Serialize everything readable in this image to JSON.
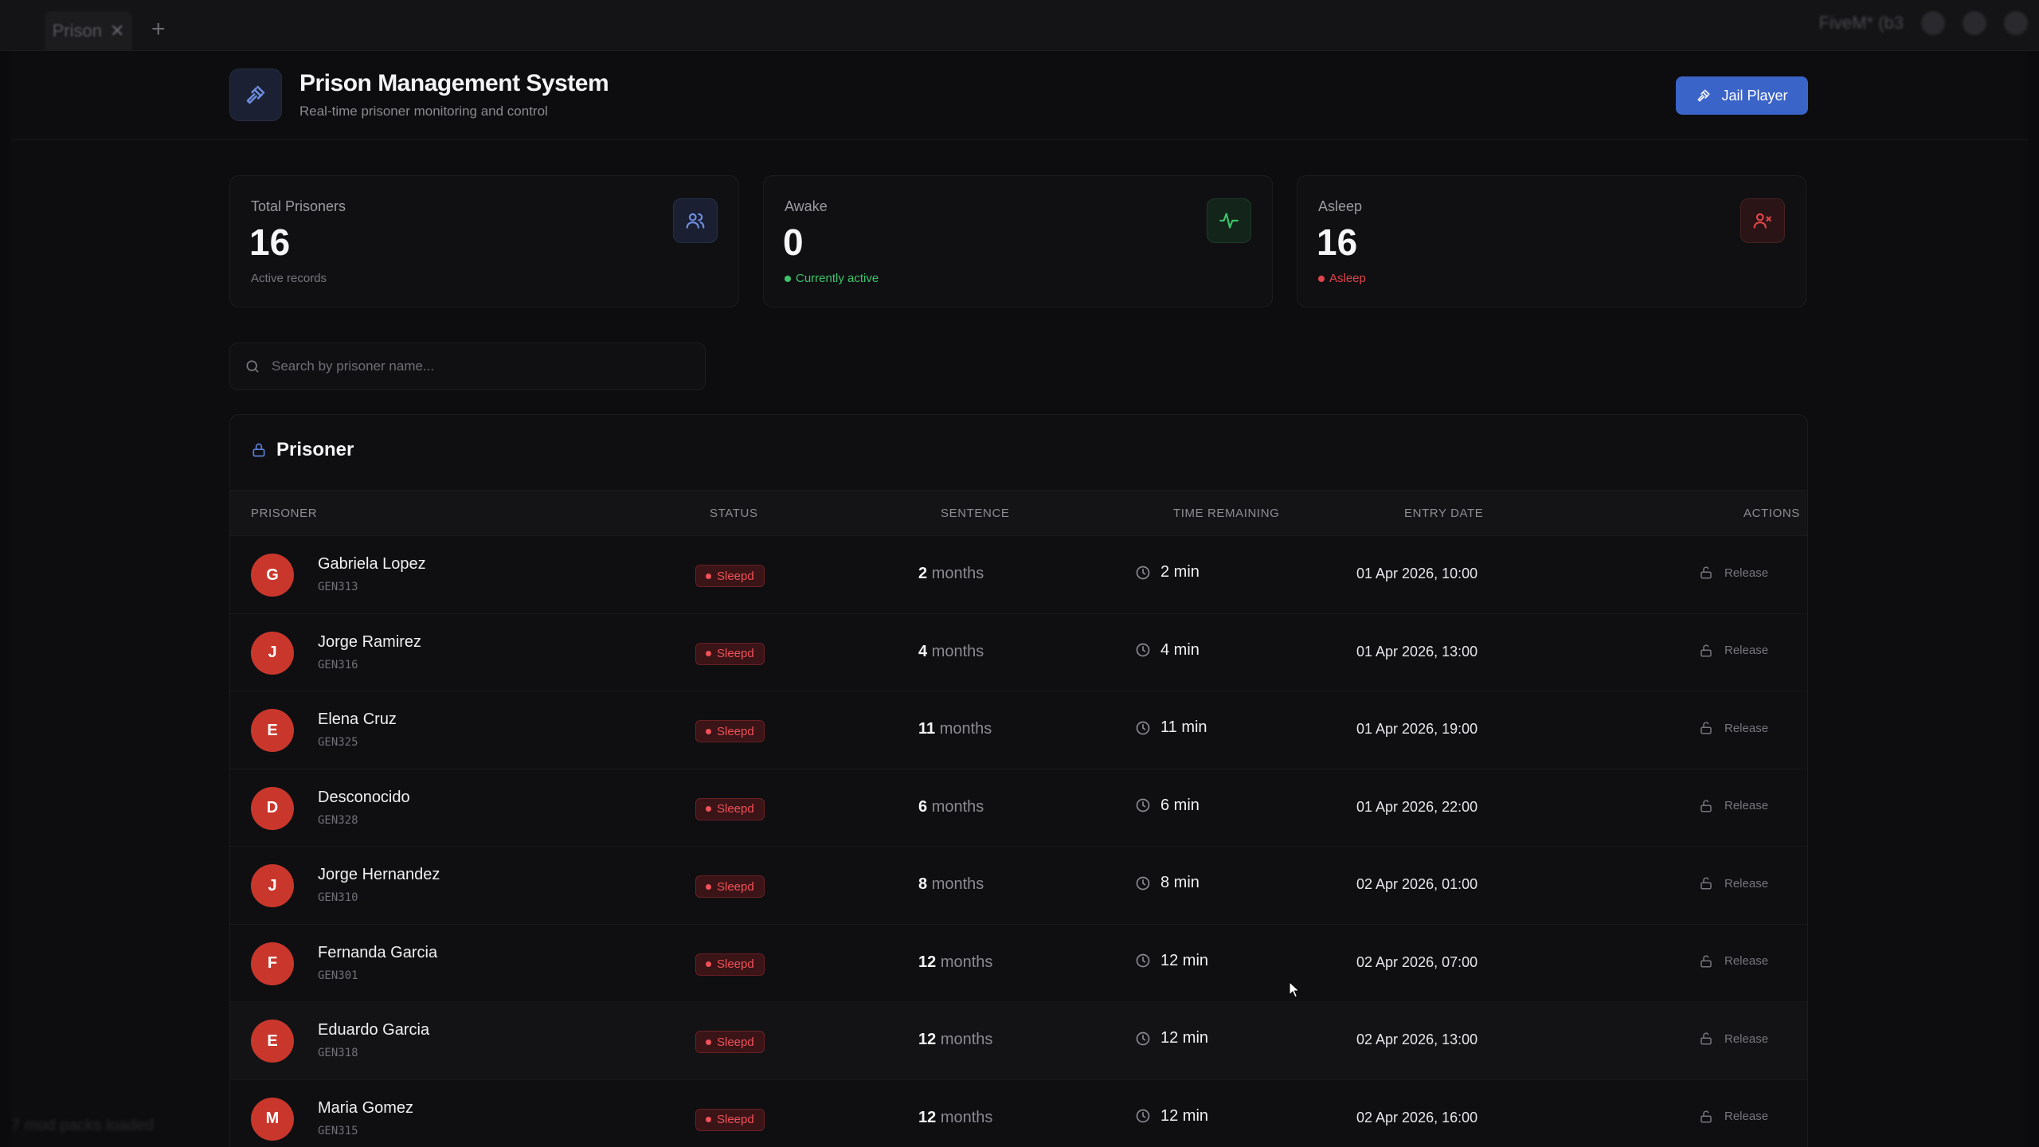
{
  "window": {
    "tab_label": "Prison",
    "new_tab": "+",
    "right_label": "FiveM* (b3",
    "footer_hint": "7 mod packs loaded"
  },
  "header": {
    "title": "Prison Management System",
    "subtitle": "Real-time prisoner monitoring and control",
    "jail_button": "Jail Player",
    "icon": "gavel-icon"
  },
  "stats": [
    {
      "label": "Total Prisoners",
      "value": "16",
      "sub": "Active records",
      "icon": "users-icon",
      "accent": "#5b7fd6"
    },
    {
      "label": "Awake",
      "value": "0",
      "sub": "Currently active",
      "icon": "activity-icon",
      "accent": "#3cc46a"
    },
    {
      "label": "Asleep",
      "value": "16",
      "sub": "Asleep",
      "icon": "user-x-icon",
      "accent": "#e0454b"
    }
  ],
  "search": {
    "placeholder": "Search by prisoner name..."
  },
  "table": {
    "title": "Prisoner",
    "columns": [
      "PRISONER",
      "STATUS",
      "SENTENCE",
      "TIME REMAINING",
      "ENTRY DATE",
      "ACTIONS"
    ],
    "action_label": "Release",
    "sentence_unit": "months",
    "rows": [
      {
        "initial": "G",
        "name": "Gabriela Lopez",
        "id": "GEN313",
        "status": "Sleepd",
        "sentence": "2",
        "remaining": "2 min",
        "entry": "01 Apr 2026, 10:00"
      },
      {
        "initial": "J",
        "name": "Jorge Ramirez",
        "id": "GEN316",
        "status": "Sleepd",
        "sentence": "4",
        "remaining": "4 min",
        "entry": "01 Apr 2026, 13:00"
      },
      {
        "initial": "E",
        "name": "Elena Cruz",
        "id": "GEN325",
        "status": "Sleepd",
        "sentence": "11",
        "remaining": "11 min",
        "entry": "01 Apr 2026, 19:00"
      },
      {
        "initial": "D",
        "name": "Desconocido",
        "id": "GEN328",
        "status": "Sleepd",
        "sentence": "6",
        "remaining": "6 min",
        "entry": "01 Apr 2026, 22:00"
      },
      {
        "initial": "J",
        "name": "Jorge Hernandez",
        "id": "GEN310",
        "status": "Sleepd",
        "sentence": "8",
        "remaining": "8 min",
        "entry": "02 Apr 2026, 01:00"
      },
      {
        "initial": "F",
        "name": "Fernanda Garcia",
        "id": "GEN301",
        "status": "Sleepd",
        "sentence": "12",
        "remaining": "12 min",
        "entry": "02 Apr 2026, 07:00"
      },
      {
        "initial": "E",
        "name": "Eduardo Garcia",
        "id": "GEN318",
        "status": "Sleepd",
        "sentence": "12",
        "remaining": "12 min",
        "entry": "02 Apr 2026, 13:00"
      },
      {
        "initial": "M",
        "name": "Maria Gomez",
        "id": "GEN315",
        "status": "Sleepd",
        "sentence": "12",
        "remaining": "12 min",
        "entry": "02 Apr 2026, 16:00"
      }
    ]
  },
  "colors": {
    "primary": "#3b64c8",
    "avatar": "#c9372c",
    "danger": "#f0525a",
    "success": "#3cc46a"
  }
}
